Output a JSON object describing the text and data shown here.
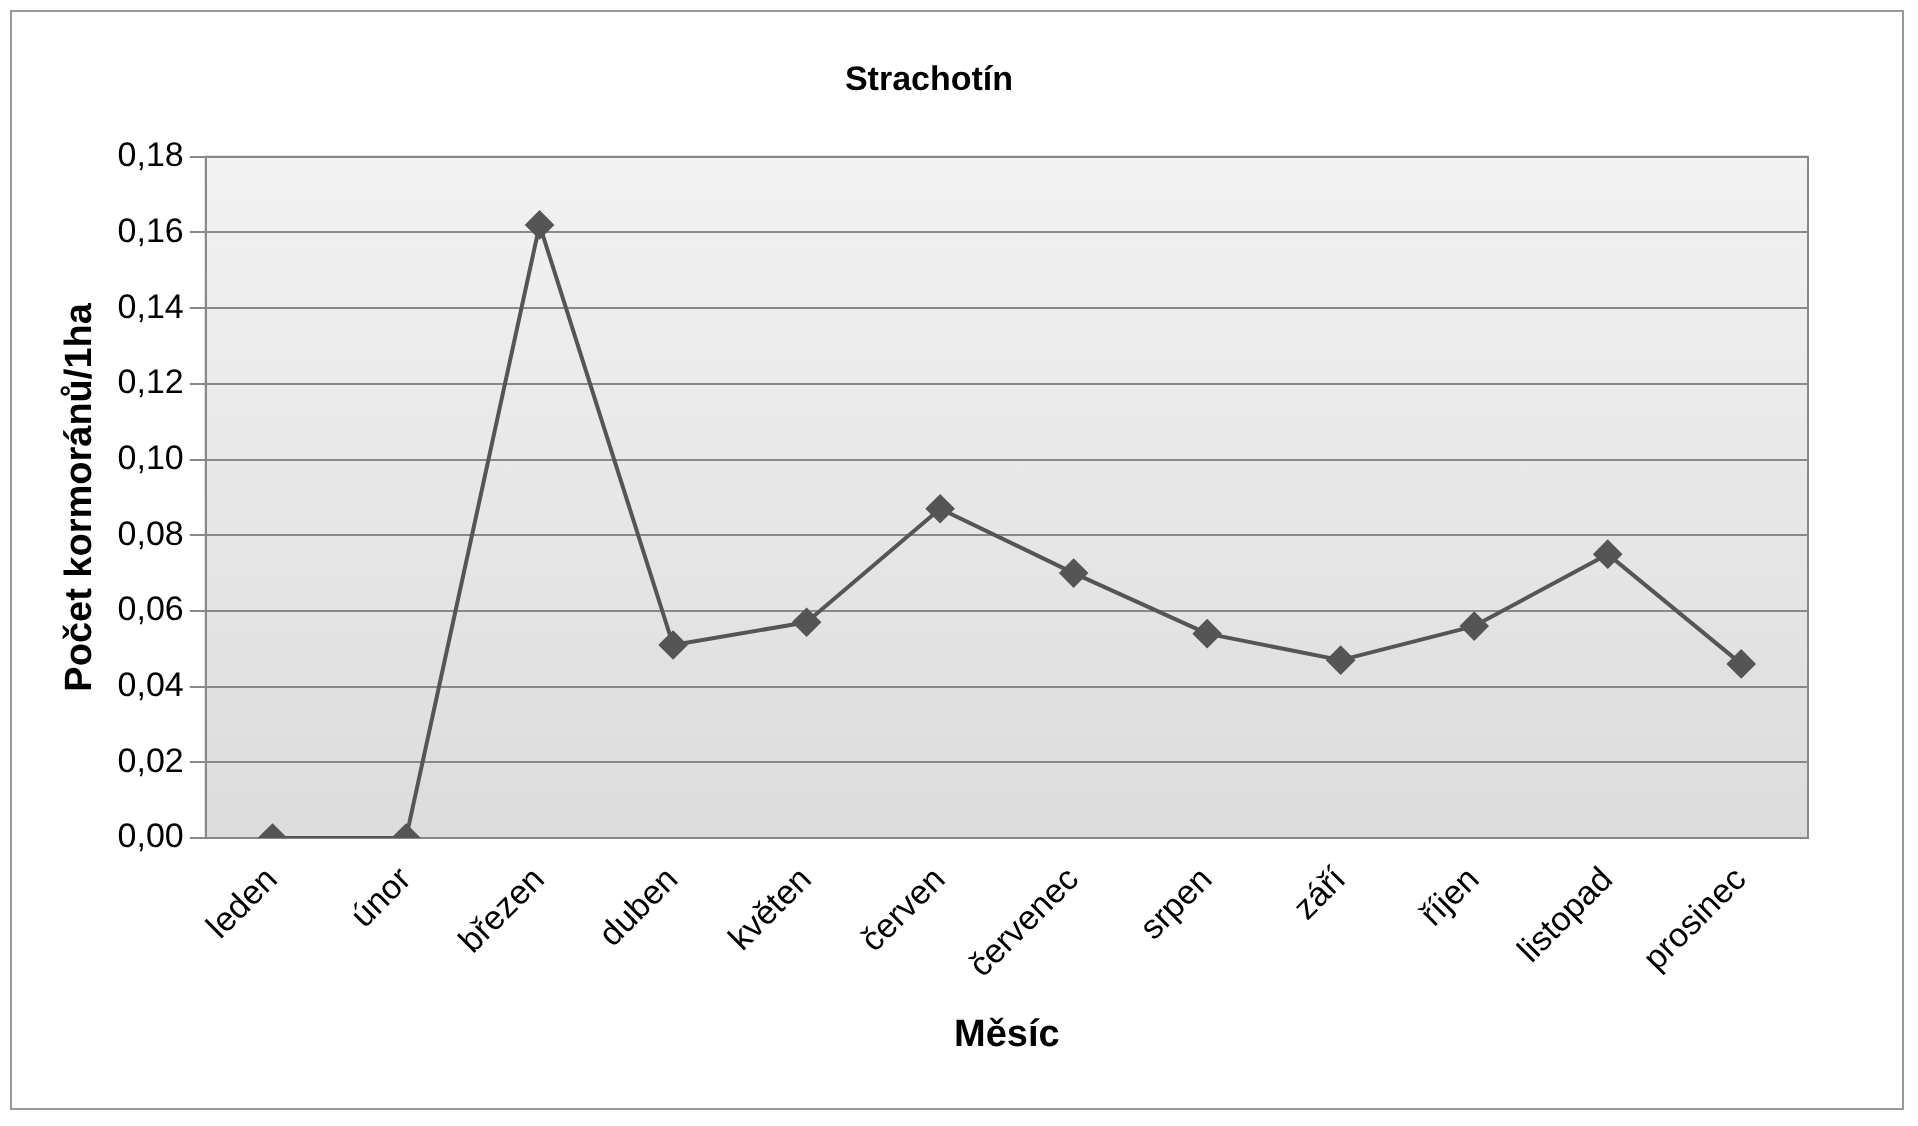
{
  "chart_data": {
    "type": "line",
    "title": "Strachotín",
    "xlabel": "Měsíc",
    "ylabel": "Počet kormoránů/1ha",
    "categories": [
      "leden",
      "únor",
      "březen",
      "duben",
      "květen",
      "červen",
      "červenec",
      "srpen",
      "září",
      "říjen",
      "listopad",
      "prosinec"
    ],
    "series": [
      {
        "color": "#555555",
        "values": [
          0,
          0,
          0.162,
          0.051,
          0.057,
          0.087,
          0.07,
          0.054,
          0.047,
          0.056,
          0.075,
          0.046
        ]
      }
    ],
    "ylim": [
      0,
      0.18
    ],
    "yticks": [
      {
        "value": 0,
        "label": "0,00"
      },
      {
        "value": 0.02,
        "label": "0,02"
      },
      {
        "value": 0.04,
        "label": "0,04"
      },
      {
        "value": 0.06,
        "label": "0,06"
      },
      {
        "value": 0.08,
        "label": "0,08"
      },
      {
        "value": 0.1,
        "label": "0,10"
      },
      {
        "value": 0.12,
        "label": "0,12"
      },
      {
        "value": 0.14,
        "label": "0,14"
      },
      {
        "value": 0.16,
        "label": "0,16"
      },
      {
        "value": 0.18,
        "label": "0,18"
      }
    ],
    "grid": "y",
    "legend": false,
    "marker": "diamond",
    "line_style": "solid"
  }
}
